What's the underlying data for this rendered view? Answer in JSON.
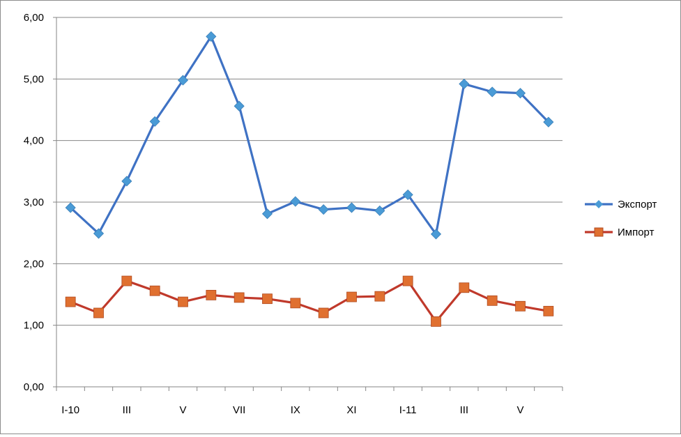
{
  "chart_data": {
    "type": "line",
    "categories": [
      "I-10",
      "",
      "III",
      "",
      "V",
      "",
      "VII",
      "",
      "IX",
      "",
      "XI",
      "",
      "I-11",
      "",
      "III",
      "",
      "V",
      ""
    ],
    "ylim": [
      0,
      6
    ],
    "yticks": [
      "0,00",
      "1,00",
      "2,00",
      "3,00",
      "4,00",
      "5,00",
      "6,00"
    ],
    "grid": true,
    "legend_position": "right",
    "series": [
      {
        "name": "Экспорт",
        "color": "#3f72c4",
        "marker": "diamond",
        "marker_color": "#4a9bd6",
        "values": [
          2.91,
          2.49,
          3.34,
          4.31,
          4.98,
          5.69,
          4.56,
          2.81,
          3.01,
          2.88,
          2.91,
          2.86,
          3.12,
          2.48,
          4.92,
          4.79,
          4.77,
          4.3
        ]
      },
      {
        "name": "Импорт",
        "color": "#c0392b",
        "marker": "square",
        "marker_color": "#e07030",
        "values": [
          1.38,
          1.2,
          1.72,
          1.56,
          1.38,
          1.49,
          1.45,
          1.43,
          1.36,
          1.2,
          1.46,
          1.47,
          1.72,
          1.06,
          1.61,
          1.4,
          1.31,
          1.23
        ]
      }
    ]
  }
}
